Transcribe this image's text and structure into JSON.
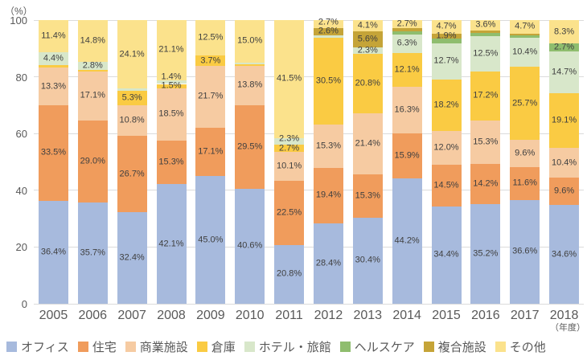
{
  "chart_data": {
    "type": "bar",
    "stacked": true,
    "unit": "%",
    "ylabel": "（%）",
    "xlabel": "（年度）",
    "ylim": [
      0,
      100
    ],
    "y_ticks": [
      0,
      20,
      40,
      60,
      80,
      100
    ],
    "grid": true,
    "legend_position": "bottom",
    "categories": [
      "2005",
      "2006",
      "2007",
      "2008",
      "2009",
      "2010",
      "2011",
      "2012",
      "2013",
      "2014",
      "2015",
      "2016",
      "2017",
      "2018"
    ],
    "series": [
      {
        "key": "office",
        "name": "オフィス",
        "color": "#A7BADD",
        "values": [
          36.4,
          35.7,
          32.4,
          42.1,
          45.0,
          40.6,
          20.8,
          28.4,
          30.4,
          44.2,
          34.4,
          35.2,
          36.6,
          34.6
        ],
        "labels": [
          "36.4%",
          "35.7%",
          "32.4%",
          "42.1%",
          "45.0%",
          "40.6%",
          "20.8%",
          "28.4%",
          "30.4%",
          "44.2%",
          "34.4%",
          "35.2%",
          "36.6%",
          "34.6%"
        ]
      },
      {
        "key": "residential",
        "name": "住宅",
        "color": "#F09C5C",
        "values": [
          33.5,
          29.0,
          26.7,
          15.3,
          17.1,
          29.5,
          22.5,
          19.4,
          15.3,
          15.9,
          14.5,
          14.2,
          11.6,
          9.6
        ],
        "labels": [
          "33.5%",
          "29.0%",
          "26.7%",
          "15.3%",
          "17.1%",
          "29.5%",
          "22.5%",
          "19.4%",
          "15.3%",
          "15.9%",
          "14.5%",
          "14.2%",
          "11.6%",
          "9.6%"
        ]
      },
      {
        "key": "commercial",
        "name": "商業施設",
        "color": "#F6CBA2",
        "values": [
          13.3,
          17.1,
          10.8,
          18.5,
          21.7,
          13.8,
          10.1,
          15.3,
          21.4,
          16.3,
          12.0,
          15.3,
          9.6,
          10.4
        ],
        "labels": [
          "13.3%",
          "17.1%",
          "10.8%",
          "18.5%",
          "21.7%",
          "13.8%",
          "10.1%",
          "15.3%",
          "21.4%",
          "16.3%",
          "12.0%",
          "15.3%",
          "9.6%",
          "10.4%"
        ]
      },
      {
        "key": "warehouse",
        "name": "倉庫",
        "color": "#FACB43",
        "values": [
          1.0,
          0.6,
          5.3,
          1.5,
          3.7,
          0.6,
          2.7,
          30.5,
          20.8,
          12.1,
          18.2,
          17.2,
          25.7,
          19.1
        ],
        "labels": [
          "",
          "",
          "5.3%",
          "1.5%",
          "3.7%",
          "",
          "2.7%",
          "30.5%",
          "20.8%",
          "12.1%",
          "18.2%",
          "17.2%",
          "25.7%",
          "19.1%"
        ]
      },
      {
        "key": "hotel",
        "name": "ホテル・旅館",
        "color": "#D8E7CA",
        "values": [
          4.4,
          2.8,
          0.7,
          1.4,
          0,
          0.5,
          2.3,
          1.0,
          2.3,
          6.3,
          12.7,
          12.5,
          10.4,
          14.7
        ],
        "labels": [
          "4.4%",
          "2.8%",
          "",
          "1.4%",
          "",
          "",
          "2.3%",
          "",
          "2.3%",
          "6.3%",
          "12.7%",
          "12.5%",
          "10.4%",
          "14.7%"
        ]
      },
      {
        "key": "healthcare",
        "name": "ヘルスケア",
        "color": "#8FBD6E",
        "values": [
          0,
          0,
          0,
          0,
          0,
          0,
          0,
          0,
          0,
          1.2,
          1.6,
          1.0,
          0.6,
          2.7
        ],
        "labels": [
          "",
          "",
          "",
          "",
          "",
          "",
          "",
          "",
          "",
          "",
          "",
          "",
          "",
          "2.7%"
        ]
      },
      {
        "key": "mixed-use",
        "name": "複合施設",
        "color": "#C5A438",
        "values": [
          0,
          0,
          0,
          0,
          0,
          0,
          0,
          2.6,
          5.6,
          1.3,
          1.9,
          1.0,
          0.8,
          0
        ],
        "labels": [
          "",
          "",
          "",
          "",
          "",
          "",
          "",
          "2.6%",
          "5.6%",
          "",
          "1.9%",
          "",
          "",
          ""
        ]
      },
      {
        "key": "other",
        "name": "その他",
        "color": "#FBE28C",
        "values": [
          11.4,
          14.8,
          24.1,
          21.1,
          12.5,
          15.0,
          41.5,
          2.7,
          4.1,
          2.7,
          4.7,
          3.6,
          4.7,
          8.3
        ],
        "labels": [
          "11.4%",
          "14.8%",
          "24.1%",
          "21.1%",
          "12.5%",
          "15.0%",
          "41.5%",
          "2.7%",
          "4.1%",
          "2.7%",
          "4.7%",
          "3.6%",
          "4.7%",
          "8.3%"
        ]
      }
    ]
  }
}
